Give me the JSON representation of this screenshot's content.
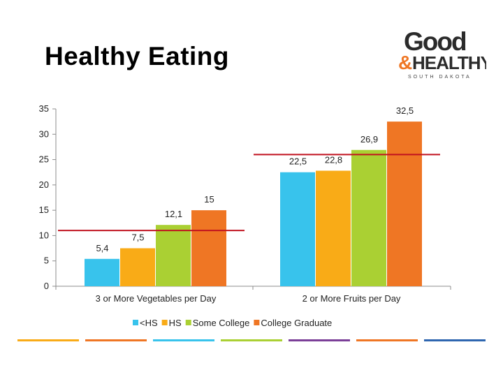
{
  "slide": {
    "title": "Healthy Eating"
  },
  "logo": {
    "word1": "Good",
    "amp": "&",
    "word2": "HEALTHY",
    "tagline": "SOUTH DAKOTA"
  },
  "colors": {
    "series": [
      "#38c3ec",
      "#f9ab17",
      "#aad033",
      "#ef7624"
    ],
    "reference_line": "#c1121f",
    "footer": [
      "#f9ab17",
      "#ef7624",
      "#38c3ec",
      "#aad033",
      "#7b3f98",
      "#ef7624",
      "#2e66b0"
    ]
  },
  "chart_data": {
    "type": "bar",
    "categories": [
      "3 or More Vegetables per Day",
      "2 or More Fruits per Day"
    ],
    "series": [
      {
        "name": "<HS",
        "values": [
          5.4,
          22.5
        ],
        "labels": [
          "5,4",
          "22,5"
        ]
      },
      {
        "name": "HS",
        "values": [
          7.5,
          22.8
        ],
        "labels": [
          "7,5",
          "22,8"
        ]
      },
      {
        "name": "Some College",
        "values": [
          12.1,
          26.9
        ],
        "labels": [
          "12,1",
          "26,9"
        ]
      },
      {
        "name": "College Graduate",
        "values": [
          15,
          32.5
        ],
        "labels": [
          "15",
          "32,5"
        ]
      }
    ],
    "reference_lines": [
      11,
      26
    ],
    "ylim": [
      0,
      35
    ],
    "yticks": [
      0,
      5,
      10,
      15,
      20,
      25,
      30,
      35
    ],
    "grid": false,
    "legend": "bottom"
  }
}
